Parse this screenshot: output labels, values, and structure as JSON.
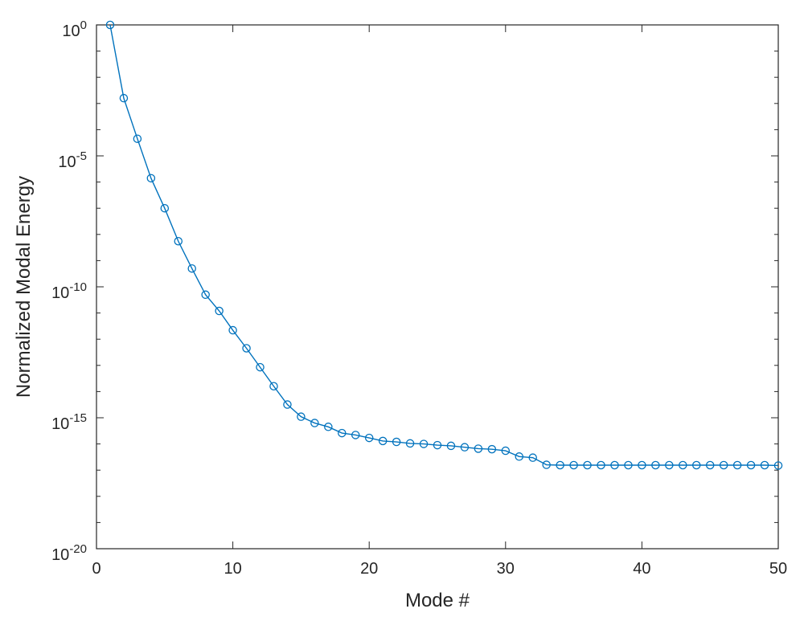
{
  "chart_data": {
    "type": "line",
    "xlabel": "Mode #",
    "ylabel": "Normalized Modal Energy",
    "xlim": [
      0,
      50
    ],
    "ylim": [
      1e-20,
      1
    ],
    "yscale": "log",
    "grid": false,
    "x_ticks": [
      0,
      10,
      20,
      30,
      40,
      50
    ],
    "y_ticks": [
      {
        "value": 1e-20,
        "base": "10",
        "exp": "-20"
      },
      {
        "value": 1e-15,
        "base": "10",
        "exp": "-15"
      },
      {
        "value": 1e-10,
        "base": "10",
        "exp": "-10"
      },
      {
        "value": 1e-05,
        "base": "10",
        "exp": "-5"
      },
      {
        "value": 1,
        "base": "10",
        "exp": "0"
      }
    ],
    "series": [
      {
        "color": "#0072BD",
        "marker": "circle",
        "x": [
          1,
          2,
          3,
          4,
          5,
          6,
          7,
          8,
          9,
          10,
          11,
          12,
          13,
          14,
          15,
          16,
          17,
          18,
          19,
          20,
          21,
          22,
          23,
          24,
          25,
          26,
          27,
          28,
          29,
          30,
          31,
          32,
          33,
          34,
          35,
          36,
          37,
          38,
          39,
          40,
          41,
          42,
          43,
          44,
          45,
          46,
          47,
          48,
          49,
          50
        ],
        "y": [
          1,
          0.0016,
          4.5e-05,
          1.4e-06,
          1e-07,
          5.5e-09,
          5e-10,
          5e-11,
          1.2e-11,
          2.2e-12,
          4.5e-13,
          8.5e-14,
          1.6e-14,
          3.2e-15,
          1.1e-15,
          6.3e-16,
          4.5e-16,
          2.6e-16,
          2.2e-16,
          1.7e-16,
          1.3e-16,
          1.2e-16,
          1.05e-16,
          1e-16,
          9e-17,
          8.5e-17,
          7.5e-17,
          6.6e-17,
          6.3e-17,
          5.5e-17,
          3.3e-17,
          3e-17,
          1.6e-17,
          1.55e-17,
          1.55e-17,
          1.55e-17,
          1.55e-17,
          1.55e-17,
          1.55e-17,
          1.55e-17,
          1.55e-17,
          1.55e-17,
          1.55e-17,
          1.55e-17,
          1.55e-17,
          1.55e-17,
          1.55e-17,
          1.55e-17,
          1.55e-17,
          1.5e-17
        ]
      }
    ]
  }
}
